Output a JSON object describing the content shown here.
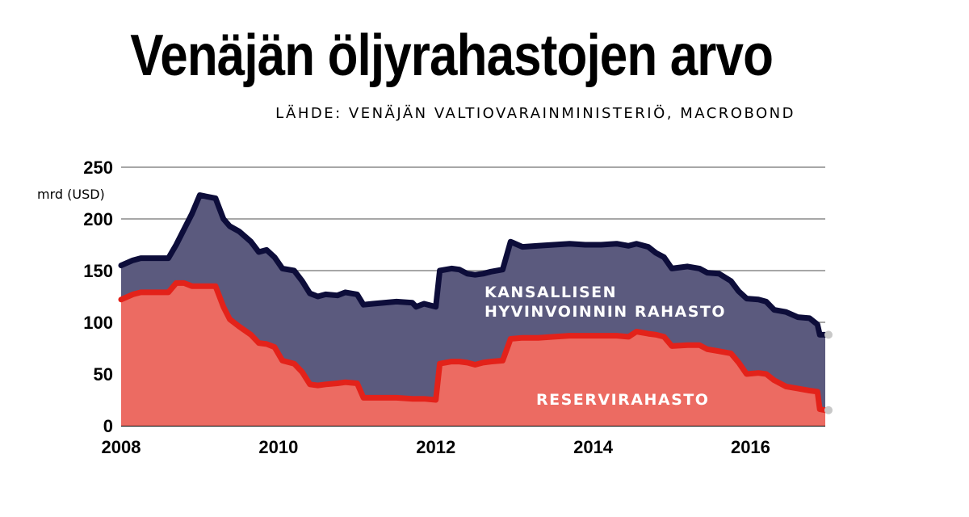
{
  "title": "Venäjän öljyrahastojen arvo",
  "source": "LÄHDE: VENÄJÄN VALTIOVARAINMINISTERIÖ, MACROBOND",
  "colors": {
    "nwf_fill": "#5b5a7e",
    "nwf_line": "#0d0d3a",
    "rf_fill": "#ec6b62",
    "rf_line": "#e3221a",
    "grid": "#8a8a8a"
  },
  "chart_data": {
    "type": "area",
    "title": "Venäjän öljyrahastojen arvo",
    "ylabel": "mrd (USD)",
    "xlabel": "",
    "ylim": [
      0,
      250
    ],
    "xlim": [
      2008,
      2016.95
    ],
    "yticks": [
      "0",
      "50",
      "100",
      "150",
      "200",
      "250"
    ],
    "xticks": [
      "2008",
      "2010",
      "2012",
      "2014",
      "2016"
    ],
    "series": [
      {
        "name": "KANSALLISEN HYVINVOINNIN RAHASTO",
        "label_lines": [
          "KANSALLISEN",
          "HYVINVOINNIN RAHASTO"
        ],
        "stack": "total",
        "points": [
          [
            2008.0,
            155
          ],
          [
            2008.15,
            160
          ],
          [
            2008.25,
            162
          ],
          [
            2008.6,
            162
          ],
          [
            2008.7,
            175
          ],
          [
            2008.8,
            190
          ],
          [
            2008.9,
            205
          ],
          [
            2009.0,
            223
          ],
          [
            2009.2,
            220
          ],
          [
            2009.3,
            200
          ],
          [
            2009.38,
            193
          ],
          [
            2009.5,
            188
          ],
          [
            2009.65,
            178
          ],
          [
            2009.75,
            168
          ],
          [
            2009.85,
            170
          ],
          [
            2009.95,
            163
          ],
          [
            2010.05,
            152
          ],
          [
            2010.2,
            150
          ],
          [
            2010.3,
            140
          ],
          [
            2010.4,
            128
          ],
          [
            2010.5,
            125
          ],
          [
            2010.6,
            127
          ],
          [
            2010.75,
            126
          ],
          [
            2010.85,
            129
          ],
          [
            2011.0,
            127
          ],
          [
            2011.08,
            117
          ],
          [
            2011.2,
            118
          ],
          [
            2011.5,
            120
          ],
          [
            2011.7,
            119
          ],
          [
            2011.75,
            115
          ],
          [
            2011.85,
            118
          ],
          [
            2012.0,
            115
          ],
          [
            2012.05,
            150
          ],
          [
            2012.2,
            152
          ],
          [
            2012.3,
            151
          ],
          [
            2012.4,
            147
          ],
          [
            2012.5,
            146
          ],
          [
            2012.6,
            147
          ],
          [
            2012.7,
            149
          ],
          [
            2012.85,
            151
          ],
          [
            2012.95,
            178
          ],
          [
            2013.1,
            173
          ],
          [
            2013.3,
            174
          ],
          [
            2013.5,
            175
          ],
          [
            2013.7,
            176
          ],
          [
            2013.9,
            175
          ],
          [
            2014.1,
            175
          ],
          [
            2014.3,
            176
          ],
          [
            2014.45,
            174
          ],
          [
            2014.55,
            176
          ],
          [
            2014.7,
            173
          ],
          [
            2014.8,
            167
          ],
          [
            2014.9,
            163
          ],
          [
            2015.0,
            152
          ],
          [
            2015.2,
            154
          ],
          [
            2015.35,
            152
          ],
          [
            2015.45,
            148
          ],
          [
            2015.6,
            147
          ],
          [
            2015.75,
            140
          ],
          [
            2015.85,
            130
          ],
          [
            2015.95,
            123
          ],
          [
            2016.1,
            122
          ],
          [
            2016.2,
            120
          ],
          [
            2016.3,
            112
          ],
          [
            2016.45,
            110
          ],
          [
            2016.6,
            105
          ],
          [
            2016.75,
            104
          ],
          [
            2016.85,
            98
          ],
          [
            2016.88,
            88
          ],
          [
            2016.95,
            88
          ]
        ]
      },
      {
        "name": "RESERVIRAHASTO",
        "label_lines": [
          "RESERVIRAHASTO"
        ],
        "stack": "own",
        "points": [
          [
            2008.0,
            122
          ],
          [
            2008.15,
            127
          ],
          [
            2008.25,
            129
          ],
          [
            2008.6,
            129
          ],
          [
            2008.7,
            138
          ],
          [
            2008.8,
            138
          ],
          [
            2008.9,
            135
          ],
          [
            2009.0,
            135
          ],
          [
            2009.2,
            135
          ],
          [
            2009.3,
            115
          ],
          [
            2009.38,
            103
          ],
          [
            2009.5,
            96
          ],
          [
            2009.65,
            88
          ],
          [
            2009.75,
            80
          ],
          [
            2009.85,
            79
          ],
          [
            2009.95,
            76
          ],
          [
            2010.05,
            63
          ],
          [
            2010.2,
            60
          ],
          [
            2010.3,
            52
          ],
          [
            2010.4,
            40
          ],
          [
            2010.5,
            39
          ],
          [
            2010.6,
            40
          ],
          [
            2010.75,
            41
          ],
          [
            2010.85,
            42
          ],
          [
            2011.0,
            41
          ],
          [
            2011.08,
            27
          ],
          [
            2011.2,
            27
          ],
          [
            2011.5,
            27
          ],
          [
            2011.7,
            26
          ],
          [
            2011.75,
            26
          ],
          [
            2011.85,
            26
          ],
          [
            2012.0,
            25
          ],
          [
            2012.05,
            60
          ],
          [
            2012.2,
            62
          ],
          [
            2012.3,
            62
          ],
          [
            2012.4,
            61
          ],
          [
            2012.5,
            59
          ],
          [
            2012.6,
            61
          ],
          [
            2012.7,
            62
          ],
          [
            2012.85,
            63
          ],
          [
            2012.95,
            84
          ],
          [
            2013.1,
            85
          ],
          [
            2013.3,
            85
          ],
          [
            2013.5,
            86
          ],
          [
            2013.7,
            87
          ],
          [
            2013.9,
            87
          ],
          [
            2014.1,
            87
          ],
          [
            2014.3,
            87
          ],
          [
            2014.45,
            86
          ],
          [
            2014.55,
            91
          ],
          [
            2014.7,
            89
          ],
          [
            2014.8,
            88
          ],
          [
            2014.9,
            86
          ],
          [
            2015.0,
            77
          ],
          [
            2015.2,
            78
          ],
          [
            2015.35,
            78
          ],
          [
            2015.45,
            74
          ],
          [
            2015.6,
            72
          ],
          [
            2015.75,
            70
          ],
          [
            2015.85,
            61
          ],
          [
            2015.95,
            50
          ],
          [
            2016.1,
            51
          ],
          [
            2016.2,
            50
          ],
          [
            2016.3,
            44
          ],
          [
            2016.45,
            38
          ],
          [
            2016.6,
            36
          ],
          [
            2016.75,
            34
          ],
          [
            2016.85,
            33
          ],
          [
            2016.88,
            16
          ],
          [
            2016.95,
            15
          ]
        ]
      }
    ]
  }
}
